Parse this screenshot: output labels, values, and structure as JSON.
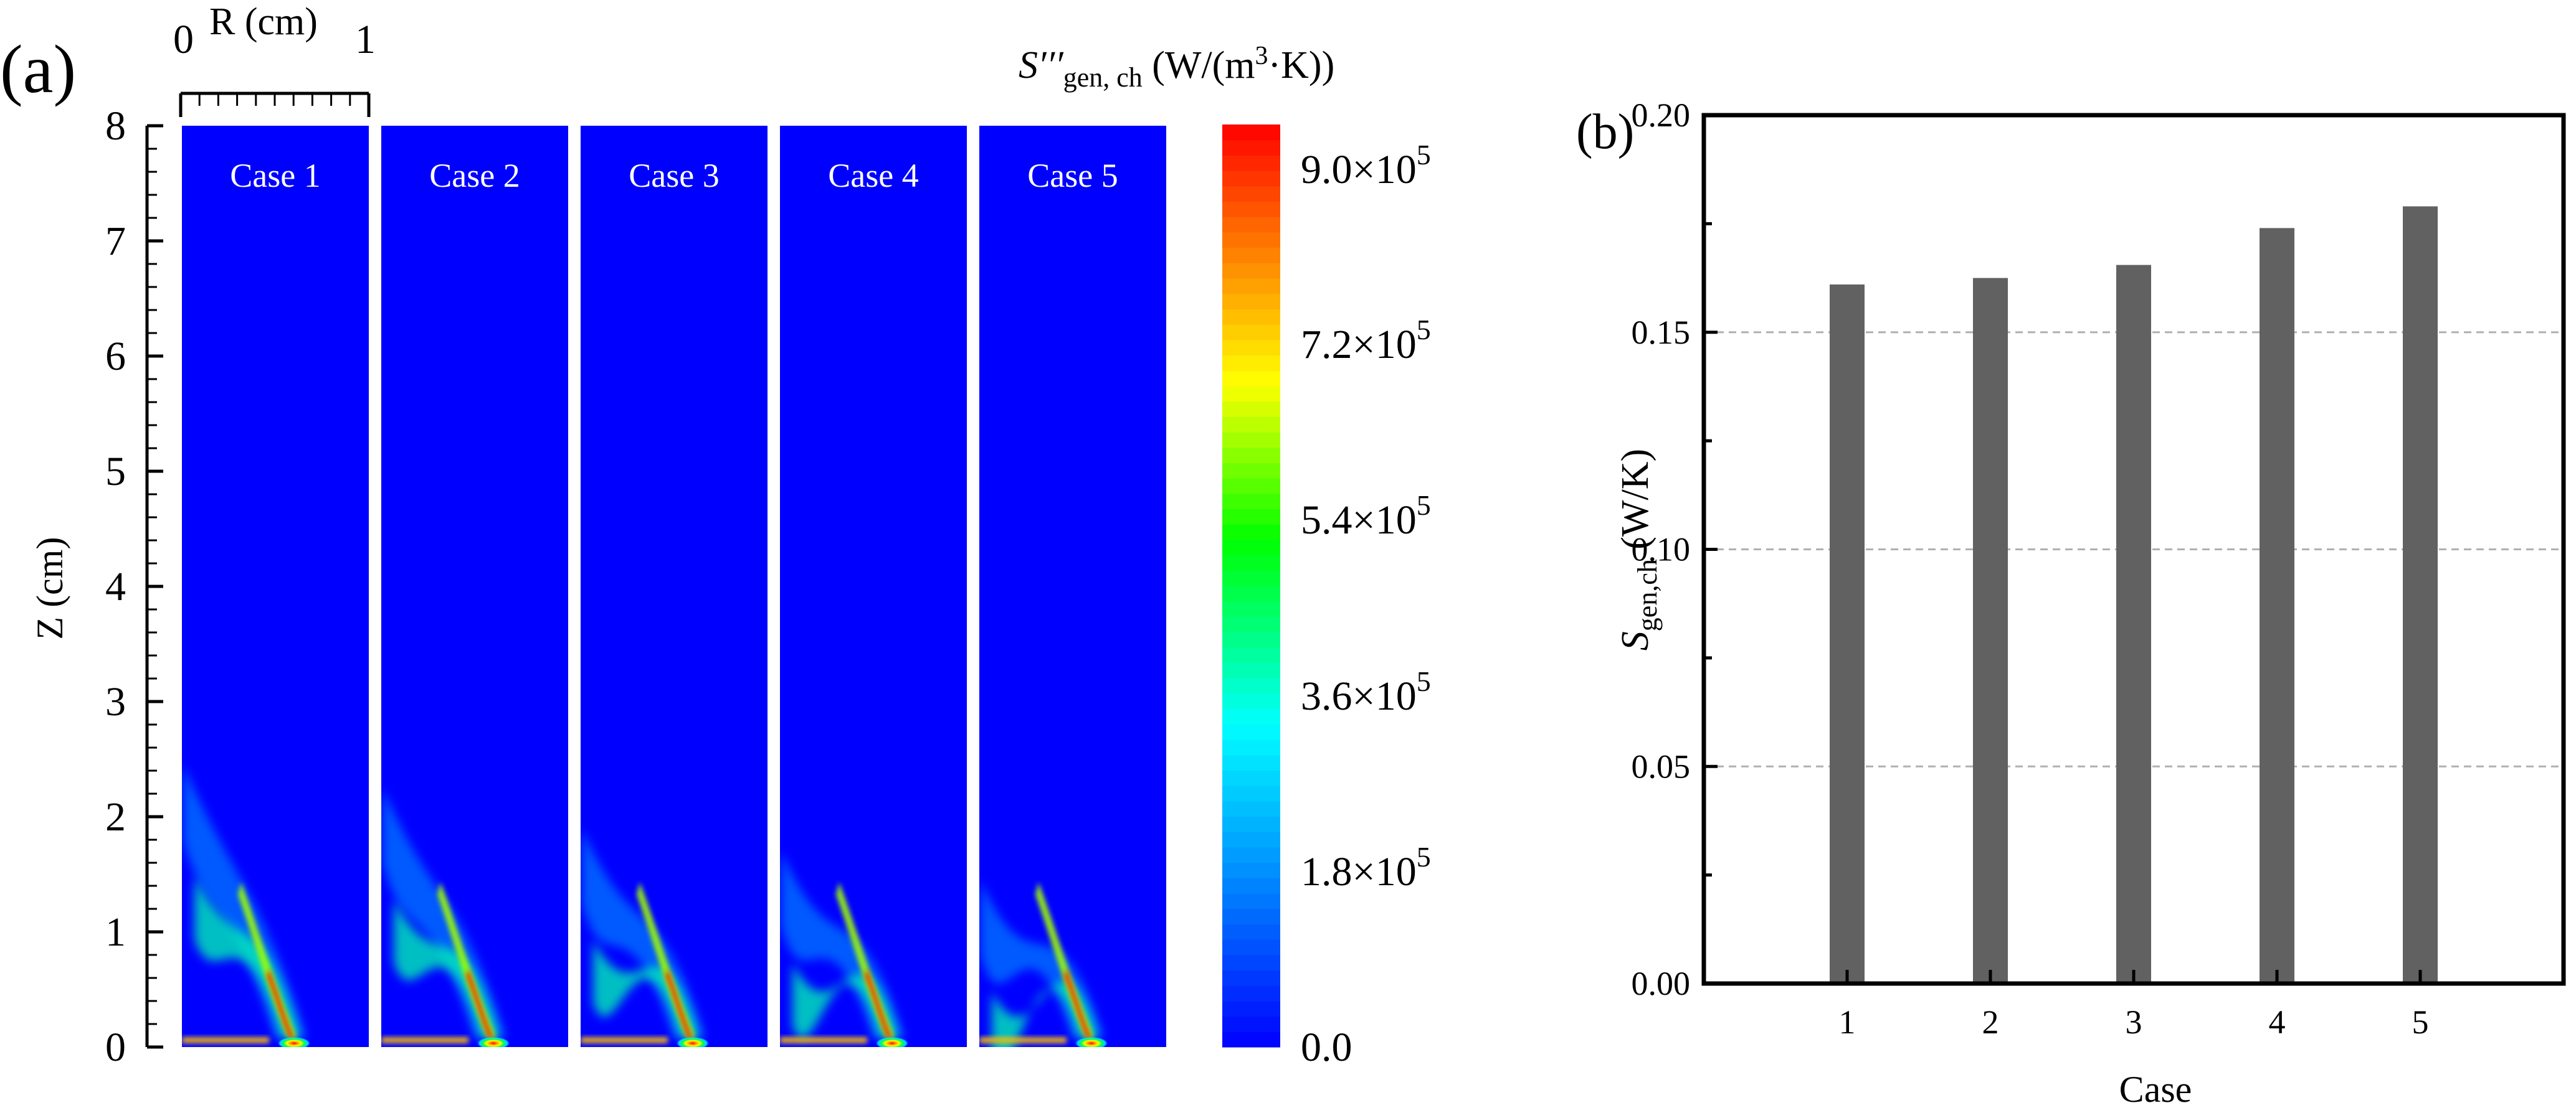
{
  "panel_a": {
    "label": "(a)",
    "r_axis": {
      "title": "R (cm)",
      "start_label": "0",
      "end_label": "1"
    },
    "z_axis": {
      "title": "Z (cm)",
      "tick_labels": [
        "0",
        "1",
        "2",
        "3",
        "4",
        "5",
        "6",
        "7",
        "8"
      ]
    },
    "case_labels": [
      "Case 1",
      "Case 2",
      "Case 3",
      "Case 4",
      "Case 5"
    ],
    "flame_extent_cm": [
      2.45,
      2.25,
      1.9,
      1.7,
      1.45
    ],
    "colorbar": {
      "title_main": "S′′′",
      "title_sub": "gen, ch",
      "title_units_a": " (W/(m",
      "title_units_sup": "3",
      "title_units_b": "·K))",
      "tick_labels": [
        {
          "base": "9.0×10",
          "exp": "5"
        },
        {
          "base": "7.2×10",
          "exp": "5"
        },
        {
          "base": "5.4×10",
          "exp": "5"
        },
        {
          "base": "3.6×10",
          "exp": "5"
        },
        {
          "base": "1.8×10",
          "exp": "5"
        },
        {
          "base": "0.0",
          "exp": ""
        }
      ],
      "colors": {
        "min": "#0000ff",
        "max": "#ff0000"
      }
    },
    "colors": {
      "field_background": "#0000ff"
    }
  },
  "panel_b": {
    "label": "(b)",
    "colors": {
      "bar": "#616161",
      "grid": "#b0b0b0"
    }
  },
  "chart_data": {
    "type": "bar",
    "categories": [
      "1",
      "2",
      "3",
      "4",
      "5"
    ],
    "values": [
      0.161,
      0.1625,
      0.1655,
      0.174,
      0.179
    ],
    "title": "",
    "xlabel": "Case",
    "ylabel_main": "S",
    "ylabel_sub": "gen,ch",
    "ylabel_units": " (W/K)",
    "ylim": [
      0.0,
      0.2
    ],
    "yticks": [
      "0.00",
      "0.05",
      "0.10",
      "0.15",
      "0.20"
    ],
    "grid": "horizontal dashed at 0.05, 0.10, 0.15"
  }
}
